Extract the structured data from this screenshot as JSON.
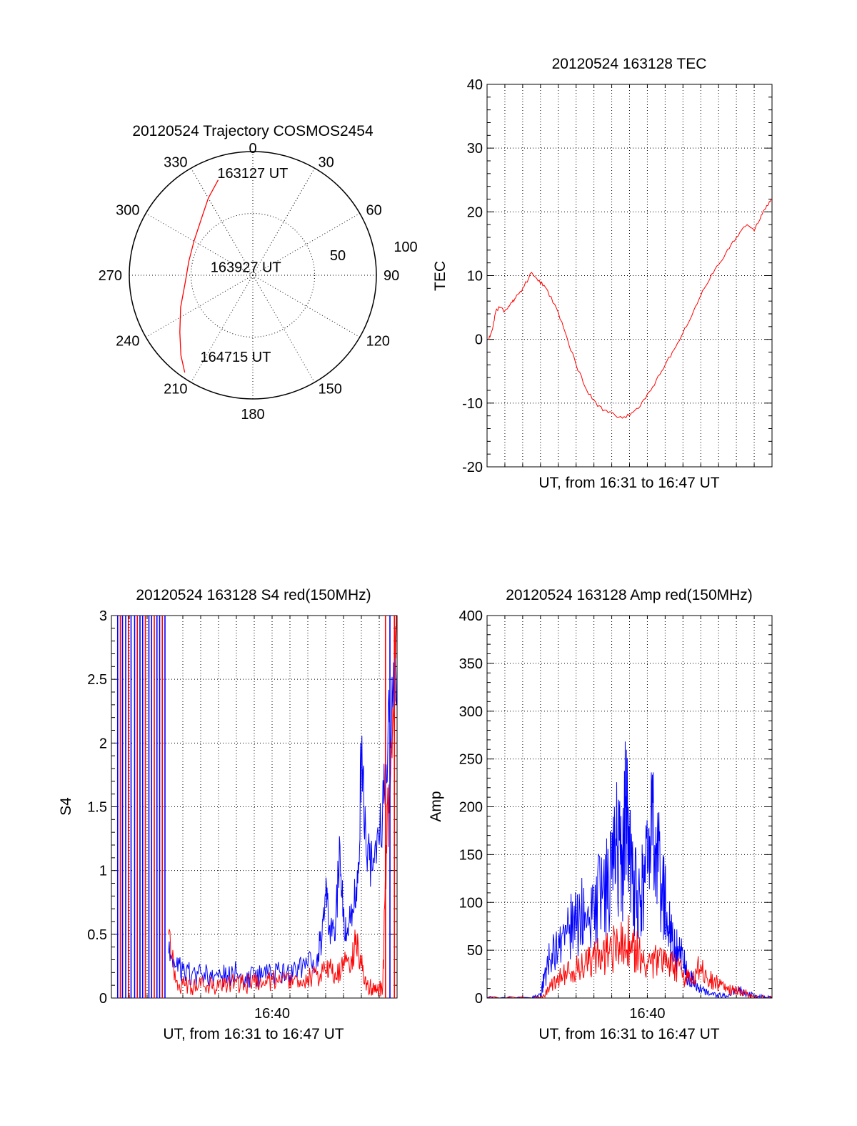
{
  "chart_data": [
    {
      "type": "polar",
      "title": "20120524 Trajectory COSMOS2454",
      "angle_labels": [
        "0",
        "30",
        "60",
        "90",
        "120",
        "150",
        "180",
        "210",
        "240",
        "270",
        "300",
        "330"
      ],
      "radial_tick_labels": [
        "50",
        "100"
      ],
      "rlim": [
        0,
        100
      ],
      "grid": true,
      "series": [
        {
          "color": "#ff0000",
          "points": [
            {
              "az": 340,
              "r": 82
            },
            {
              "az": 330,
              "r": 72
            },
            {
              "az": 318,
              "r": 62
            },
            {
              "az": 300,
              "r": 55
            },
            {
              "az": 282,
              "r": 53
            },
            {
              "az": 264,
              "r": 55
            },
            {
              "az": 246,
              "r": 64
            },
            {
              "az": 232,
              "r": 75
            },
            {
              "az": 222,
              "r": 87
            },
            {
              "az": 215,
              "r": 96
            }
          ]
        }
      ],
      "annotations": [
        {
          "text": "163127 UT",
          "az": 341,
          "r": 88
        },
        {
          "text": "163927 UT",
          "az": 282,
          "r": 35
        },
        {
          "text": "164715 UT",
          "az": 213,
          "r": 78
        }
      ]
    },
    {
      "type": "line",
      "title": "20120524 163128 TEC",
      "xlabel": "UT, from 16:31 to 16:47 UT",
      "ylabel": "TEC",
      "xlim": [
        0,
        16
      ],
      "ylim": [
        -20,
        40
      ],
      "yticks": [
        -20,
        -10,
        0,
        10,
        20,
        30,
        40
      ],
      "grid": true,
      "series": [
        {
          "color": "#ff0000",
          "x": [
            0.1,
            0.3,
            0.5,
            0.7,
            1.0,
            1.3,
            1.6,
            2.0,
            2.5,
            2.8,
            3.2,
            3.8,
            4.4,
            5.0,
            5.6,
            6.2,
            6.8,
            7.4,
            8.0,
            8.6,
            9.2,
            9.8,
            10.4,
            11.0,
            11.6,
            12.2,
            12.8,
            13.4,
            14.0,
            14.6,
            15.0,
            15.4,
            15.7,
            16.0
          ],
          "y": [
            0.0,
            1.5,
            4.5,
            5.0,
            4.5,
            5.5,
            6.5,
            8.0,
            10.5,
            9.5,
            8.5,
            5.5,
            1.0,
            -4.0,
            -8.0,
            -10.5,
            -11.5,
            -12.2,
            -12.0,
            -10.5,
            -8.0,
            -5.0,
            -2.0,
            1.0,
            4.5,
            8.0,
            11.0,
            13.5,
            16.0,
            18.0,
            17.0,
            19.5,
            21.0,
            22.0
          ]
        }
      ]
    },
    {
      "type": "line",
      "title": "20120524 163128 S4 red(150MHz)",
      "xlabel": "UT, from 16:31 to 16:47 UT",
      "ylabel": "S4",
      "xlim": [
        0,
        16
      ],
      "ylim": [
        0,
        3
      ],
      "yticks": [
        0,
        0.5,
        1,
        1.5,
        2,
        2.5,
        3
      ],
      "yticklabels": [
        "0",
        "0.5",
        "1",
        "1.5",
        "2",
        "2.5",
        "3"
      ],
      "xticklabels": [
        {
          "x": 9,
          "label": "16:40"
        }
      ],
      "grid": true,
      "series": [
        {
          "color": "#0000ff",
          "x": [
            3.2,
            3.6,
            4.0,
            4.5,
            5.0,
            5.5,
            6.0,
            6.5,
            7.0,
            7.5,
            8.0,
            8.5,
            9.0,
            9.5,
            10.0,
            10.5,
            11.0,
            11.5,
            11.8,
            12.0,
            12.2,
            12.5,
            12.8,
            13.0,
            13.2,
            13.5,
            13.8,
            14.0,
            14.3,
            14.6,
            15.0,
            15.3,
            15.6,
            16.0
          ],
          "y": [
            0.35,
            0.25,
            0.22,
            0.18,
            0.2,
            0.17,
            0.16,
            0.18,
            0.2,
            0.17,
            0.16,
            0.18,
            0.19,
            0.2,
            0.18,
            0.22,
            0.25,
            0.3,
            0.5,
            0.8,
            0.55,
            0.45,
            1.2,
            0.6,
            0.5,
            0.7,
            0.9,
            1.9,
            1.1,
            1.0,
            1.2,
            1.6,
            2.2,
            2.6
          ]
        },
        {
          "color": "#ff0000",
          "x": [
            3.2,
            3.6,
            4.0,
            4.5,
            5.0,
            5.5,
            6.0,
            6.5,
            7.0,
            7.5,
            8.0,
            8.5,
            9.0,
            9.5,
            10.0,
            10.5,
            11.0,
            11.5,
            12.0,
            12.3,
            12.6,
            13.0,
            13.4,
            13.7,
            14.0,
            14.3,
            14.6,
            14.9,
            15.2,
            15.4,
            15.6,
            16.0
          ],
          "y": [
            0.5,
            0.12,
            0.1,
            0.08,
            0.09,
            0.1,
            0.08,
            0.1,
            0.12,
            0.11,
            0.12,
            0.13,
            0.14,
            0.12,
            0.15,
            0.14,
            0.17,
            0.18,
            0.2,
            0.25,
            0.16,
            0.3,
            0.22,
            0.5,
            0.25,
            0.12,
            0.08,
            0.06,
            0.1,
            1.2,
            1.6,
            2.8
          ]
        }
      ]
    },
    {
      "type": "line",
      "title": "20120524 163128 Amp red(150MHz)",
      "xlabel": "UT, from 16:31 to 16:47 UT",
      "ylabel": "Amp",
      "xlim": [
        0,
        16
      ],
      "ylim": [
        0,
        400
      ],
      "yticks": [
        0,
        50,
        100,
        150,
        200,
        250,
        300,
        350,
        400
      ],
      "xticklabels": [
        {
          "x": 9,
          "label": "16:40"
        }
      ],
      "grid": true,
      "series": [
        {
          "color": "#0000ff",
          "x": [
            0.0,
            2.5,
            3.0,
            3.2,
            3.5,
            4.0,
            4.5,
            5.0,
            5.5,
            6.0,
            6.5,
            7.0,
            7.3,
            7.6,
            7.8,
            8.0,
            8.3,
            8.6,
            8.9,
            9.2,
            9.5,
            9.8,
            10.1,
            10.4,
            10.7,
            11.0,
            11.3,
            11.6,
            12.0,
            12.5,
            13.0,
            13.5,
            14.0,
            14.5,
            15.0,
            15.5,
            16.0
          ],
          "y": [
            0,
            0,
            2,
            20,
            40,
            55,
            70,
            80,
            90,
            100,
            110,
            125,
            160,
            130,
            200,
            140,
            110,
            95,
            140,
            170,
            150,
            120,
            90,
            60,
            50,
            40,
            25,
            15,
            8,
            4,
            3,
            2,
            10,
            5,
            2,
            1,
            0
          ]
        },
        {
          "color": "#ff0000",
          "x": [
            0.0,
            3.0,
            3.5,
            4.0,
            4.5,
            5.0,
            5.5,
            6.0,
            6.5,
            7.0,
            7.5,
            8.0,
            8.5,
            9.0,
            9.5,
            10.0,
            10.5,
            11.0,
            11.5,
            12.0,
            12.5,
            13.0,
            13.5,
            14.0,
            14.5,
            15.0,
            16.0
          ],
          "y": [
            0,
            0,
            10,
            20,
            25,
            30,
            35,
            40,
            45,
            50,
            55,
            60,
            45,
            30,
            40,
            50,
            35,
            25,
            15,
            35,
            20,
            15,
            8,
            10,
            5,
            2,
            0
          ]
        }
      ]
    }
  ]
}
